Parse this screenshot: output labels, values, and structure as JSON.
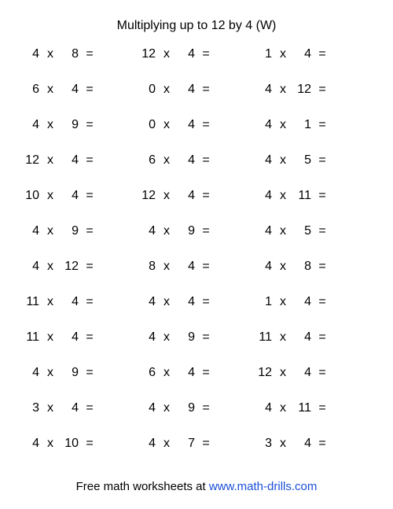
{
  "title": "Multiplying up to 12 by 4 (W)",
  "operator": "x",
  "equals": "=",
  "text_color": "#000000",
  "background_color": "#ffffff",
  "link_color": "#1a4fd8",
  "font_size_pt": 12,
  "columns": 3,
  "rows": 12,
  "problems": [
    {
      "a": 4,
      "b": 8
    },
    {
      "a": 12,
      "b": 4
    },
    {
      "a": 1,
      "b": 4
    },
    {
      "a": 6,
      "b": 4
    },
    {
      "a": 0,
      "b": 4
    },
    {
      "a": 4,
      "b": 12
    },
    {
      "a": 4,
      "b": 9
    },
    {
      "a": 0,
      "b": 4
    },
    {
      "a": 4,
      "b": 1
    },
    {
      "a": 12,
      "b": 4
    },
    {
      "a": 6,
      "b": 4
    },
    {
      "a": 4,
      "b": 5
    },
    {
      "a": 10,
      "b": 4
    },
    {
      "a": 12,
      "b": 4
    },
    {
      "a": 4,
      "b": 11
    },
    {
      "a": 4,
      "b": 9
    },
    {
      "a": 4,
      "b": 9
    },
    {
      "a": 4,
      "b": 5
    },
    {
      "a": 4,
      "b": 12
    },
    {
      "a": 8,
      "b": 4
    },
    {
      "a": 4,
      "b": 8
    },
    {
      "a": 11,
      "b": 4
    },
    {
      "a": 4,
      "b": 4
    },
    {
      "a": 1,
      "b": 4
    },
    {
      "a": 11,
      "b": 4
    },
    {
      "a": 4,
      "b": 9
    },
    {
      "a": 11,
      "b": 4
    },
    {
      "a": 4,
      "b": 9
    },
    {
      "a": 6,
      "b": 4
    },
    {
      "a": 12,
      "b": 4
    },
    {
      "a": 3,
      "b": 4
    },
    {
      "a": 4,
      "b": 9
    },
    {
      "a": 4,
      "b": 11
    },
    {
      "a": 4,
      "b": 10
    },
    {
      "a": 4,
      "b": 7
    },
    {
      "a": 3,
      "b": 4
    }
  ],
  "footer": {
    "prefix": "Free math worksheets at ",
    "link_text": "www.math-drills.com"
  }
}
